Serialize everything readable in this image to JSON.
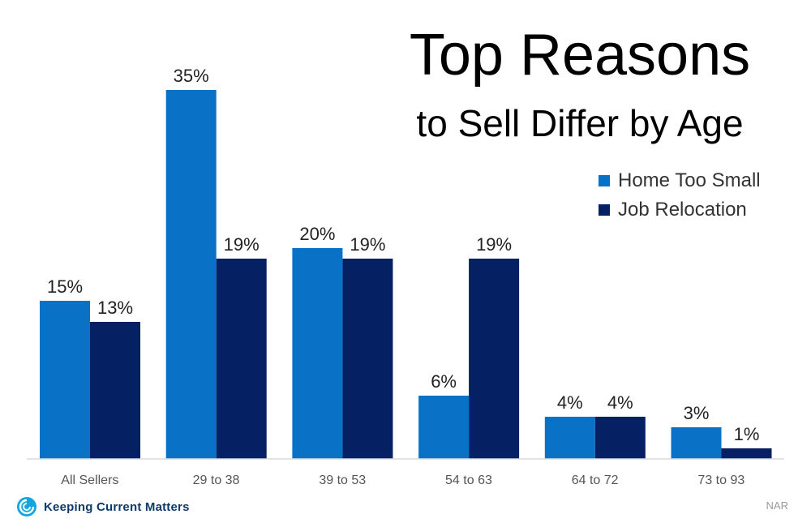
{
  "chart_data": {
    "type": "bar",
    "title": "Top Reasons",
    "subtitle": "to Sell Differ by Age",
    "categories": [
      "All Sellers",
      "29 to 38",
      "39 to 53",
      "54 to 63",
      "64 to 72",
      "73 to 93"
    ],
    "series": [
      {
        "name": "Home Too Small",
        "values": [
          15,
          35,
          20,
          6,
          4,
          3
        ],
        "labels": [
          "15%",
          "35%",
          "20%",
          "6%",
          "4%",
          "3%"
        ],
        "color": "#0a72c6"
      },
      {
        "name": "Job Relocation",
        "values": [
          13,
          19,
          19,
          19,
          4,
          1
        ],
        "labels": [
          "13%",
          "19%",
          "19%",
          "19%",
          "4%",
          "1%"
        ],
        "color": "#062163"
      }
    ],
    "ylim": [
      0,
      35
    ],
    "grid": false,
    "legend_position": "top-right",
    "xlabel": "",
    "ylabel": ""
  },
  "brand": {
    "name": "Keeping Current Matters",
    "logo_icon": "kcm-swirl-icon"
  },
  "source": "NAR"
}
